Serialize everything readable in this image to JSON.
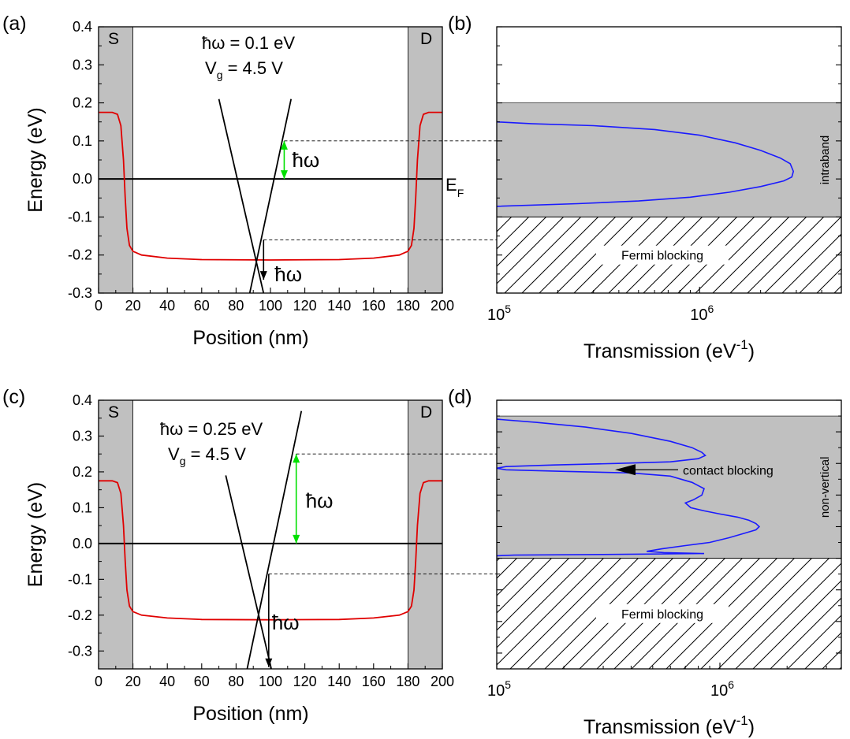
{
  "chart_data": [
    {
      "panel": "(a)",
      "type": "line",
      "xlabel": "Position  (nm)",
      "ylabel": "Energy  (eV)",
      "xlim": [
        0,
        200
      ],
      "ylim": [
        -0.3,
        0.4
      ],
      "xticks": [
        0,
        20,
        40,
        60,
        80,
        100,
        120,
        140,
        160,
        180,
        200
      ],
      "yticks": [
        0.4,
        0.3,
        0.2,
        0.1,
        0.0,
        -0.1,
        -0.2,
        -0.3
      ],
      "ytick_labels": [
        "0.4",
        "0.3",
        "0.2",
        "0.1",
        "0.0",
        "-0.1",
        "-0.2",
        "-0.3"
      ],
      "contacts": {
        "left_label": "S",
        "right_label": "D",
        "left_range": [
          0,
          20
        ],
        "right_range": [
          180,
          200
        ]
      },
      "annotation_lines": [
        "ħω = 0.1 eV",
        "V",
        "g",
        " = 4.5 V"
      ],
      "fermi_label": "E",
      "fermi_sub": "F",
      "fermi_level": 0.0,
      "hw_label": "ħω",
      "band_profile": [
        [
          0,
          0.175
        ],
        [
          8,
          0.175
        ],
        [
          11,
          0.17
        ],
        [
          13,
          0.14
        ],
        [
          14.5,
          0.05
        ],
        [
          15.5,
          -0.05
        ],
        [
          16.5,
          -0.13
        ],
        [
          18,
          -0.175
        ],
        [
          20,
          -0.19
        ],
        [
          25,
          -0.2
        ],
        [
          40,
          -0.208
        ],
        [
          60,
          -0.212
        ],
        [
          100,
          -0.213
        ],
        [
          140,
          -0.212
        ],
        [
          160,
          -0.208
        ],
        [
          175,
          -0.2
        ],
        [
          180,
          -0.19
        ],
        [
          182,
          -0.175
        ],
        [
          183.5,
          -0.13
        ],
        [
          184.5,
          -0.05
        ],
        [
          185.5,
          0.05
        ],
        [
          187,
          0.14
        ],
        [
          189,
          0.17
        ],
        [
          192,
          0.175
        ],
        [
          200,
          0.175
        ]
      ],
      "cone_lines": [
        [
          [
            70,
            0.21
          ],
          [
            97,
            -0.32
          ]
        ],
        [
          [
            112,
            0.21
          ],
          [
            87,
            -0.32
          ]
        ]
      ],
      "arrows": [
        {
          "x": 108,
          "from": 0.0,
          "to": 0.1,
          "color": "#00e000"
        },
        {
          "x": 96,
          "from": -0.16,
          "to": -0.265,
          "color": "#000000"
        }
      ],
      "dashed_levels": [
        0.1,
        -0.16
      ]
    },
    {
      "panel": "(b)",
      "type": "line",
      "xlabel": "Transmission  (eV",
      "xlabel_sup": "-1",
      "xlabel_end": ")",
      "xscale": "log",
      "xlim": [
        100000,
        5000000
      ],
      "xtick_labels": [
        {
          "base": "10",
          "exp": "5"
        },
        {
          "base": "10",
          "exp": "6"
        }
      ],
      "ylim": [
        -0.3,
        0.4
      ],
      "shaded_band": [
        -0.1,
        0.2
      ],
      "hatched_band": [
        -0.3,
        -0.1
      ],
      "band_label": "intraband",
      "hatch_label": "Fermi blocking",
      "series": [
        {
          "color": "#1a1aff",
          "points": [
            [
              100000,
              0.15
            ],
            [
              150000,
              0.145
            ],
            [
              300000,
              0.14
            ],
            [
              600000,
              0.13
            ],
            [
              1000000,
              0.115
            ],
            [
              1500000,
              0.095
            ],
            [
              2000000,
              0.075
            ],
            [
              2500000,
              0.055
            ],
            [
              2800000,
              0.04
            ],
            [
              2900000,
              0.02
            ],
            [
              2850000,
              0.005
            ],
            [
              2600000,
              -0.005
            ],
            [
              2000000,
              -0.02
            ],
            [
              1400000,
              -0.035
            ],
            [
              900000,
              -0.048
            ],
            [
              500000,
              -0.058
            ],
            [
              250000,
              -0.065
            ],
            [
              100000,
              -0.072
            ]
          ]
        }
      ]
    },
    {
      "panel": "(c)",
      "type": "line",
      "xlabel": "Position  (nm)",
      "ylabel": "Energy  (eV)",
      "xlim": [
        0,
        200
      ],
      "ylim": [
        -0.35,
        0.4
      ],
      "xticks": [
        0,
        20,
        40,
        60,
        80,
        100,
        120,
        140,
        160,
        180,
        200
      ],
      "yticks": [
        0.4,
        0.3,
        0.2,
        0.1,
        0.0,
        -0.1,
        -0.2,
        -0.3
      ],
      "ytick_labels": [
        "0.4",
        "0.3",
        "0.2",
        "0.1",
        "0.0",
        "-0.1",
        "-0.2",
        "-0.3"
      ],
      "contacts": {
        "left_label": "S",
        "right_label": "D",
        "left_range": [
          0,
          20
        ],
        "right_range": [
          180,
          200
        ]
      },
      "annotation_lines": [
        "ħω = 0.25 eV",
        "V",
        "g",
        " = 4.5 V"
      ],
      "fermi_level": 0.0,
      "hw_label": "ħω",
      "band_profile": [
        [
          0,
          0.175
        ],
        [
          8,
          0.175
        ],
        [
          11,
          0.17
        ],
        [
          13,
          0.14
        ],
        [
          14.5,
          0.05
        ],
        [
          15.5,
          -0.05
        ],
        [
          16.5,
          -0.13
        ],
        [
          18,
          -0.175
        ],
        [
          20,
          -0.19
        ],
        [
          25,
          -0.2
        ],
        [
          40,
          -0.208
        ],
        [
          60,
          -0.212
        ],
        [
          100,
          -0.213
        ],
        [
          140,
          -0.212
        ],
        [
          160,
          -0.208
        ],
        [
          175,
          -0.2
        ],
        [
          180,
          -0.19
        ],
        [
          182,
          -0.175
        ],
        [
          183.5,
          -0.13
        ],
        [
          184.5,
          -0.05
        ],
        [
          185.5,
          0.05
        ],
        [
          187,
          0.14
        ],
        [
          189,
          0.17
        ],
        [
          192,
          0.175
        ],
        [
          200,
          0.175
        ]
      ],
      "cone_lines": [
        [
          [
            74,
            0.19
          ],
          [
            101,
            -0.36
          ]
        ],
        [
          [
            118,
            0.37
          ],
          [
            86,
            -0.36
          ]
        ]
      ],
      "arrows": [
        {
          "x": 115,
          "from": 0.0,
          "to": 0.25,
          "color": "#00e000"
        },
        {
          "x": 99,
          "from": -0.085,
          "to": -0.345,
          "color": "#000000"
        }
      ],
      "dashed_levels": [
        0.25,
        -0.085
      ]
    },
    {
      "panel": "(d)",
      "type": "line",
      "xlabel": "Transmission  (eV",
      "xlabel_sup": "-1",
      "xlabel_end": ")",
      "xscale": "log",
      "xlim": [
        100000,
        3500000
      ],
      "xtick_labels": [
        {
          "base": "10",
          "exp": "5"
        },
        {
          "base": "10",
          "exp": "6"
        }
      ],
      "ylim": [
        -0.45,
        0.4
      ],
      "shaded_band": [
        -0.1,
        0.35
      ],
      "hatched_band": [
        -0.45,
        -0.1
      ],
      "band_label": "non-vertical",
      "hatch_label": "Fermi blocking",
      "callout_label": "contact blocking",
      "series": [
        {
          "color": "#1a1aff",
          "points": [
            [
              100000,
              0.34
            ],
            [
              150000,
              0.33
            ],
            [
              250000,
              0.315
            ],
            [
              400000,
              0.295
            ],
            [
              600000,
              0.27
            ],
            [
              750000,
              0.25
            ],
            [
              830000,
              0.235
            ],
            [
              860000,
              0.225
            ],
            [
              800000,
              0.215
            ],
            [
              600000,
              0.205
            ],
            [
              350000,
              0.2
            ],
            [
              180000,
              0.195
            ],
            [
              110000,
              0.19
            ],
            [
              100000,
              0.185
            ],
            [
              110000,
              0.18
            ],
            [
              200000,
              0.175
            ],
            [
              400000,
              0.17
            ],
            [
              600000,
              0.16
            ],
            [
              750000,
              0.14
            ],
            [
              850000,
              0.12
            ],
            [
              830000,
              0.1
            ],
            [
              760000,
              0.085
            ],
            [
              700000,
              0.075
            ],
            [
              740000,
              0.06
            ],
            [
              850000,
              0.05
            ],
            [
              1000000,
              0.04
            ],
            [
              1200000,
              0.03
            ],
            [
              1350000,
              0.02
            ],
            [
              1450000,
              0.01
            ],
            [
              1500000,
              0.0
            ],
            [
              1450000,
              -0.01
            ],
            [
              1300000,
              -0.02
            ],
            [
              1100000,
              -0.035
            ],
            [
              900000,
              -0.05
            ],
            [
              700000,
              -0.06
            ],
            [
              550000,
              -0.07
            ],
            [
              470000,
              -0.078
            ],
            [
              560000,
              -0.082
            ],
            [
              850000,
              -0.085
            ],
            [
              300000,
              -0.088
            ],
            [
              120000,
              -0.09
            ],
            [
              100000,
              -0.092
            ]
          ]
        }
      ]
    }
  ]
}
